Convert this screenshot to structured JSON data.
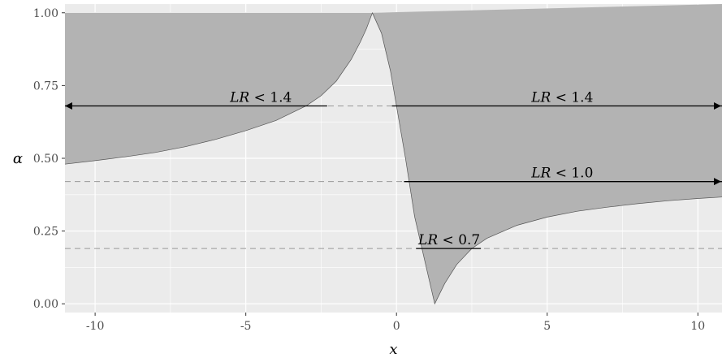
{
  "chart_data": {
    "type": "area",
    "title": "",
    "xlabel": "x",
    "ylabel": "α",
    "xlim": [
      -11,
      10.8
    ],
    "ylim": [
      -0.03,
      1.03
    ],
    "x_ticks": [
      -10,
      -5,
      0,
      5,
      10
    ],
    "x_tick_labels": [
      "-10",
      "-5",
      "0",
      "5",
      "10"
    ],
    "y_ticks": [
      0,
      0.25,
      0.5,
      0.75,
      1
    ],
    "y_tick_labels": [
      "0.00",
      "0.25",
      "0.50",
      "0.75",
      "1.00"
    ],
    "grid": true,
    "colors": {
      "panel": "#ebebeb",
      "grid": "#ffffff",
      "shade": "#b3b3b3",
      "shade_outline": "#555555",
      "arrow": "#000000",
      "reference": "#999999"
    },
    "shaded_boundary": {
      "x": [
        -11,
        -10,
        -9,
        -8,
        -7,
        -6,
        -5,
        -4,
        -3,
        -2.5,
        -2,
        -1.5,
        -1.2,
        -1,
        -0.8,
        -0.5,
        -0.2,
        0,
        0.3,
        0.6,
        1,
        1.27,
        1.6,
        2,
        2.5,
        3,
        4,
        5,
        6,
        7,
        8,
        9,
        10,
        10.8
      ],
      "y": [
        0.48,
        0.492,
        0.505,
        0.52,
        0.54,
        0.565,
        0.595,
        0.63,
        0.68,
        0.715,
        0.765,
        0.84,
        0.9,
        0.945,
        1.0,
        0.93,
        0.8,
        0.68,
        0.5,
        0.3,
        0.12,
        0.0,
        0.07,
        0.135,
        0.19,
        0.225,
        0.27,
        0.298,
        0.318,
        0.332,
        0.344,
        0.354,
        0.362,
        0.367
      ]
    },
    "reference_lines": [
      {
        "y": 0.68
      },
      {
        "y": 0.42
      },
      {
        "y": 0.19
      }
    ],
    "annotations": [
      {
        "text_prefix": "LR",
        "text_rest": " < 1.4",
        "x": -4.5,
        "y": 0.68,
        "arrow_from": -2.3,
        "arrow_to": -11,
        "arrowheads": "start"
      },
      {
        "text_prefix": "LR",
        "text_rest": " < 1.4",
        "x": 5.5,
        "y": 0.68,
        "arrow_from": -0.15,
        "arrow_to": 10.8,
        "arrowheads": "end"
      },
      {
        "text_prefix": "LR",
        "text_rest": " < 1.0",
        "x": 5.5,
        "y": 0.42,
        "arrow_from": 0.25,
        "arrow_to": 10.8,
        "arrowheads": "end"
      },
      {
        "text_prefix": "LR",
        "text_rest": " < 0.7",
        "x": 1.75,
        "y": 0.19,
        "arrow_from": 0.65,
        "arrow_to": 2.8,
        "arrowheads": "none"
      }
    ]
  }
}
